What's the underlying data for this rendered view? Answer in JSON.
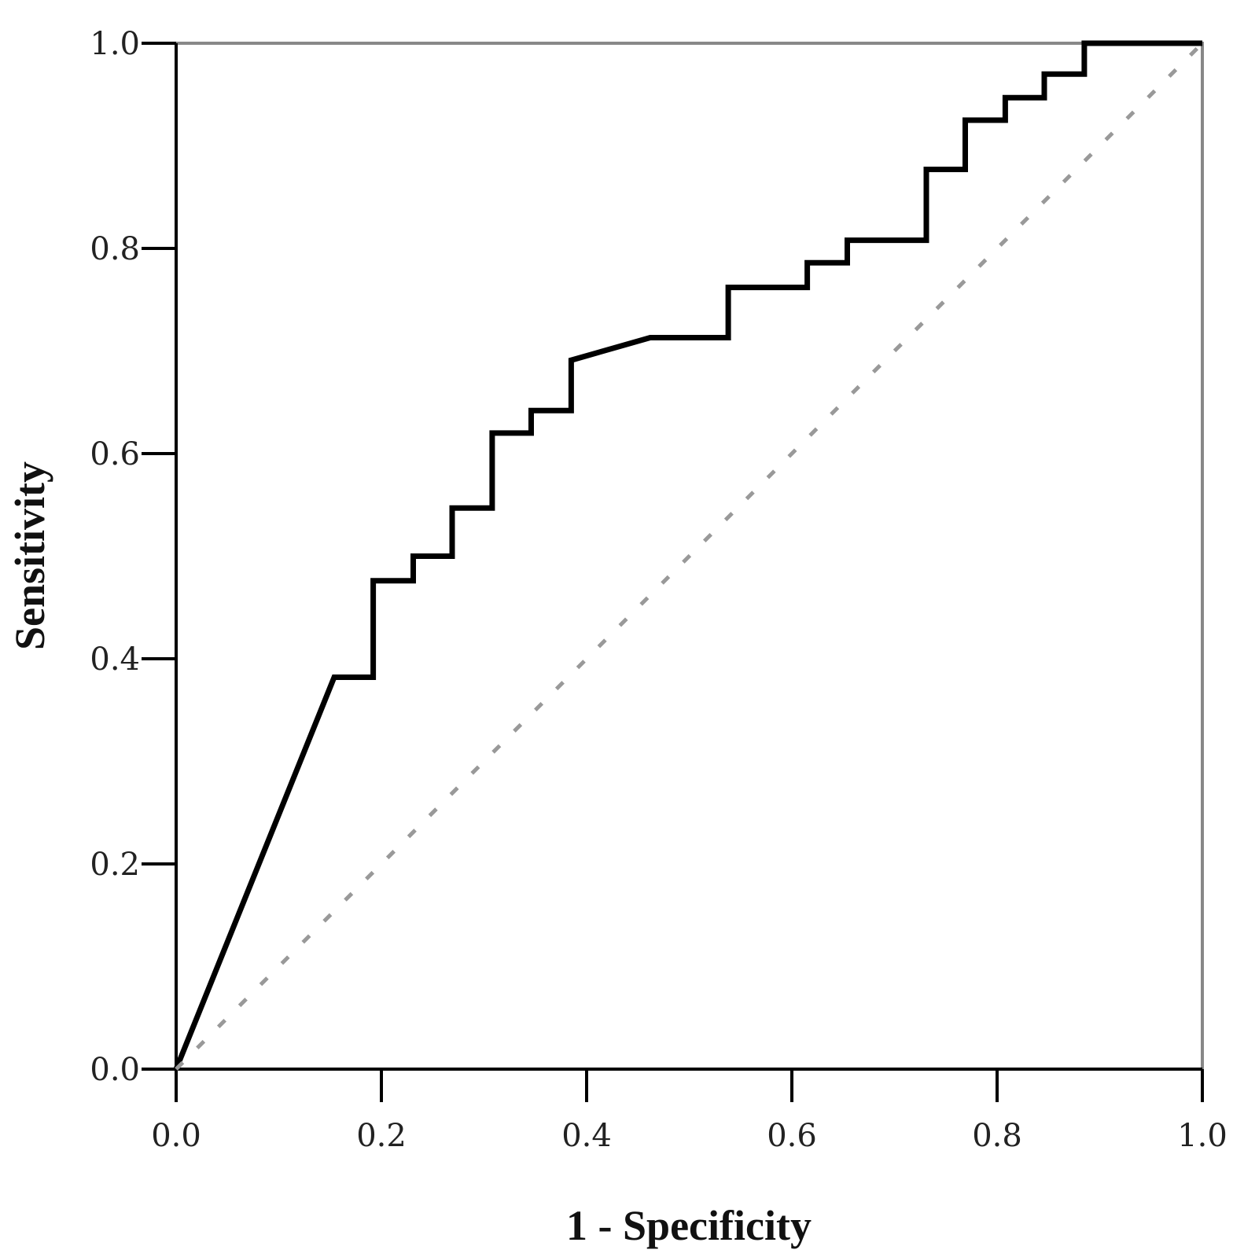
{
  "chart_data": {
    "type": "line",
    "title": "",
    "xlabel": "1 - Specificity",
    "ylabel": "Sensitivity",
    "xlim": [
      0,
      1
    ],
    "ylim": [
      0,
      1
    ],
    "xticks": [
      "0.0",
      "0.2",
      "0.4",
      "0.6",
      "0.8",
      "1.0"
    ],
    "yticks": [
      "0.0",
      "0.2",
      "0.4",
      "0.6",
      "0.8",
      "1.0"
    ],
    "grid": false,
    "legend": "none",
    "series": [
      {
        "name": "ROC curve",
        "style": "solid",
        "color": "#000000",
        "x": [
          0,
          0.154,
          0.192,
          0.192,
          0.231,
          0.231,
          0.269,
          0.269,
          0.308,
          0.308,
          0.346,
          0.346,
          0.385,
          0.385,
          0.462,
          0.538,
          0.538,
          0.615,
          0.615,
          0.654,
          0.654,
          0.731,
          0.731,
          0.769,
          0.769,
          0.808,
          0.808,
          0.846,
          0.846,
          0.885,
          0.885,
          1.0
        ],
        "y": [
          0,
          0.382,
          0.382,
          0.476,
          0.476,
          0.5,
          0.5,
          0.547,
          0.547,
          0.62,
          0.62,
          0.642,
          0.642,
          0.691,
          0.713,
          0.713,
          0.762,
          0.762,
          0.786,
          0.786,
          0.808,
          0.808,
          0.877,
          0.877,
          0.925,
          0.925,
          0.947,
          0.947,
          0.97,
          0.97,
          1.0,
          1.0
        ]
      },
      {
        "name": "Reference line",
        "style": "dashed",
        "color": "#999999",
        "x": [
          0,
          1
        ],
        "y": [
          0,
          1
        ]
      }
    ]
  }
}
